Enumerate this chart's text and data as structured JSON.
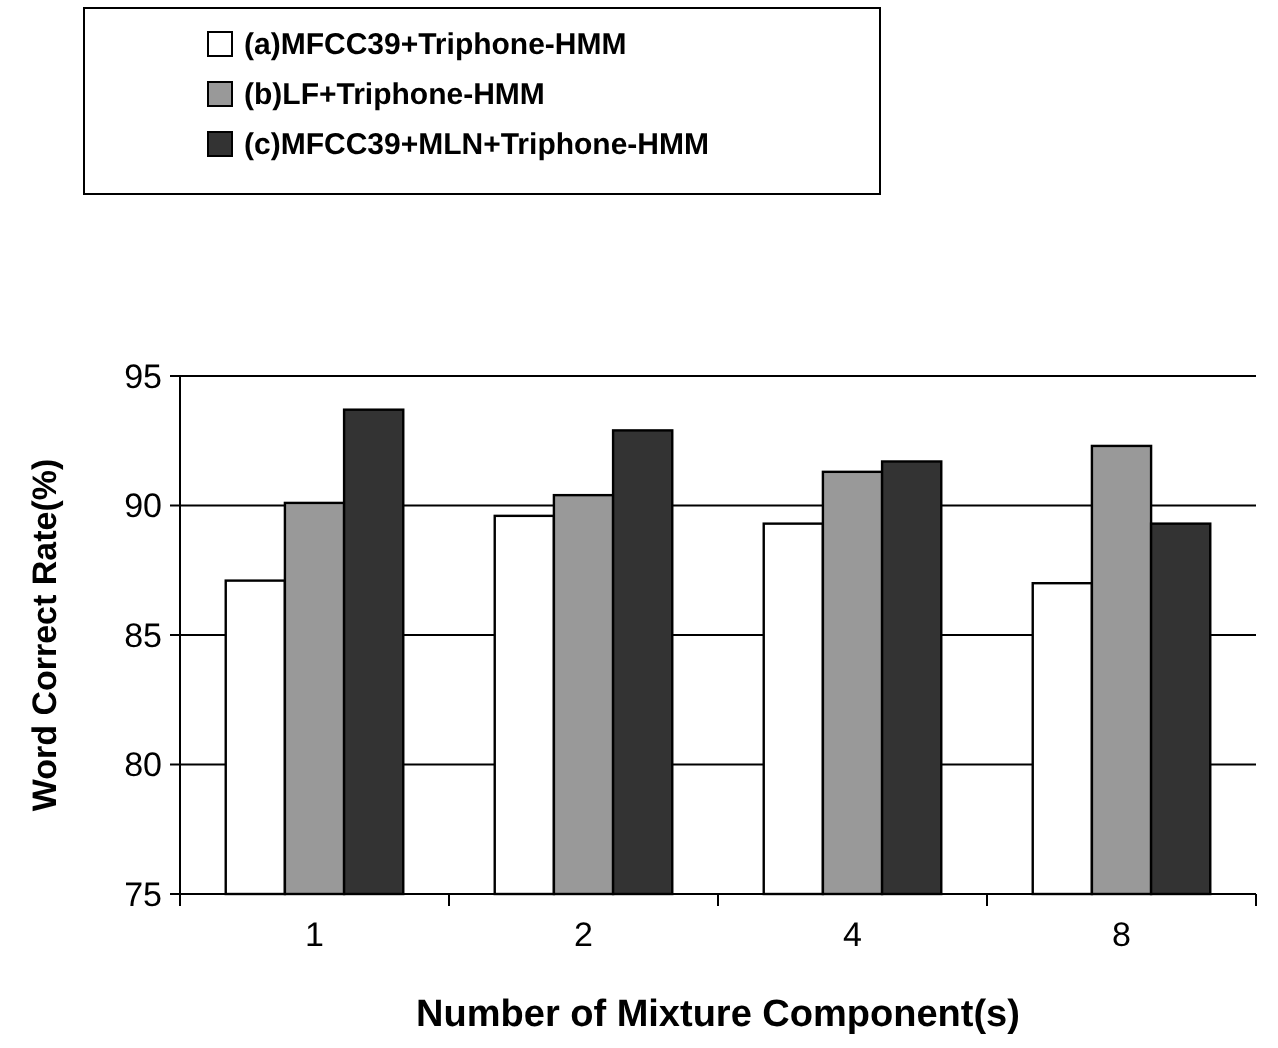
{
  "chart_data": {
    "type": "bar",
    "xlabel": "Number of Mixture Component(s)",
    "ylabel": "Word Correct Rate(%)",
    "categories": [
      "1",
      "2",
      "4",
      "8"
    ],
    "series": [
      {
        "name": "(a)MFCC39+Triphone-HMM",
        "color": "#ffffff",
        "values": [
          87.1,
          89.6,
          89.3,
          87.0
        ]
      },
      {
        "name": "(b)LF+Triphone-HMM",
        "color": "#999999",
        "values": [
          90.1,
          90.4,
          91.3,
          92.3
        ]
      },
      {
        "name": "(c)MFCC39+MLN+Triphone-HMM",
        "color": "#333333",
        "values": [
          93.7,
          92.9,
          91.7,
          89.3
        ]
      }
    ],
    "ylim": [
      75,
      95
    ],
    "yticks": [
      75,
      80,
      85,
      90,
      95
    ],
    "grid": "y",
    "legend": "top left"
  }
}
